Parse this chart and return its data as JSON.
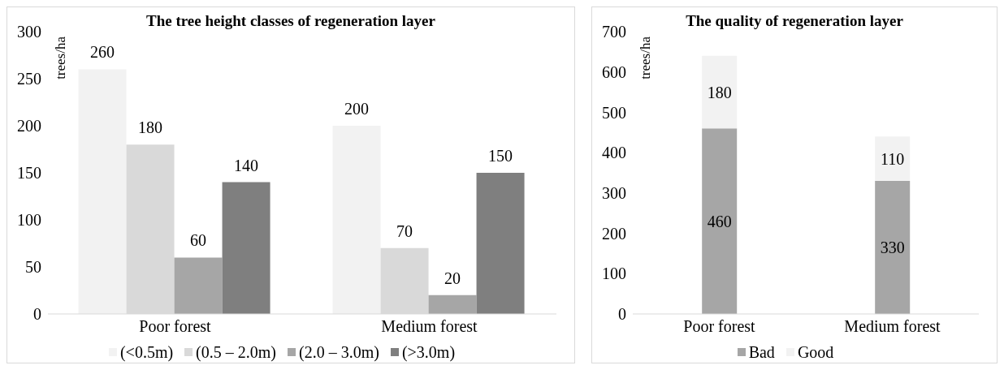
{
  "chart_data": [
    {
      "type": "bar",
      "title": "The tree height classes of regeneration layer",
      "ylabel": "trees/ha",
      "categories": [
        "Poor forest",
        "Medium forest"
      ],
      "series": [
        {
          "name": "(<0.5m)",
          "color": "#f2f2f2",
          "values": [
            260,
            200
          ]
        },
        {
          "name": "(0.5 – 2.0m)",
          "color": "#d9d9d9",
          "values": [
            180,
            70
          ]
        },
        {
          "name": "(2.0 – 3.0m)",
          "color": "#a6a6a6",
          "values": [
            60,
            20
          ]
        },
        {
          "name": "(>3.0m)",
          "color": "#7f7f7f",
          "values": [
            140,
            150
          ]
        }
      ],
      "ylim": [
        0,
        300
      ],
      "yticks": [
        0,
        50,
        100,
        150,
        200,
        250,
        300
      ],
      "data_labels": true,
      "legend": "bottom",
      "grid": false
    },
    {
      "type": "bar",
      "title": "The quality of regeneration layer",
      "ylabel": "trees/ha",
      "categories": [
        "Poor forest",
        "Medium forest"
      ],
      "stacked": true,
      "series": [
        {
          "name": "Bad",
          "color": "#a6a6a6",
          "values": [
            460,
            330
          ]
        },
        {
          "name": "Good",
          "color": "#f2f2f2",
          "values": [
            180,
            110
          ]
        }
      ],
      "ylim": [
        0,
        700
      ],
      "yticks": [
        0,
        100,
        200,
        300,
        400,
        500,
        600,
        700
      ],
      "data_labels": true,
      "legend": "bottom",
      "grid": false
    }
  ]
}
